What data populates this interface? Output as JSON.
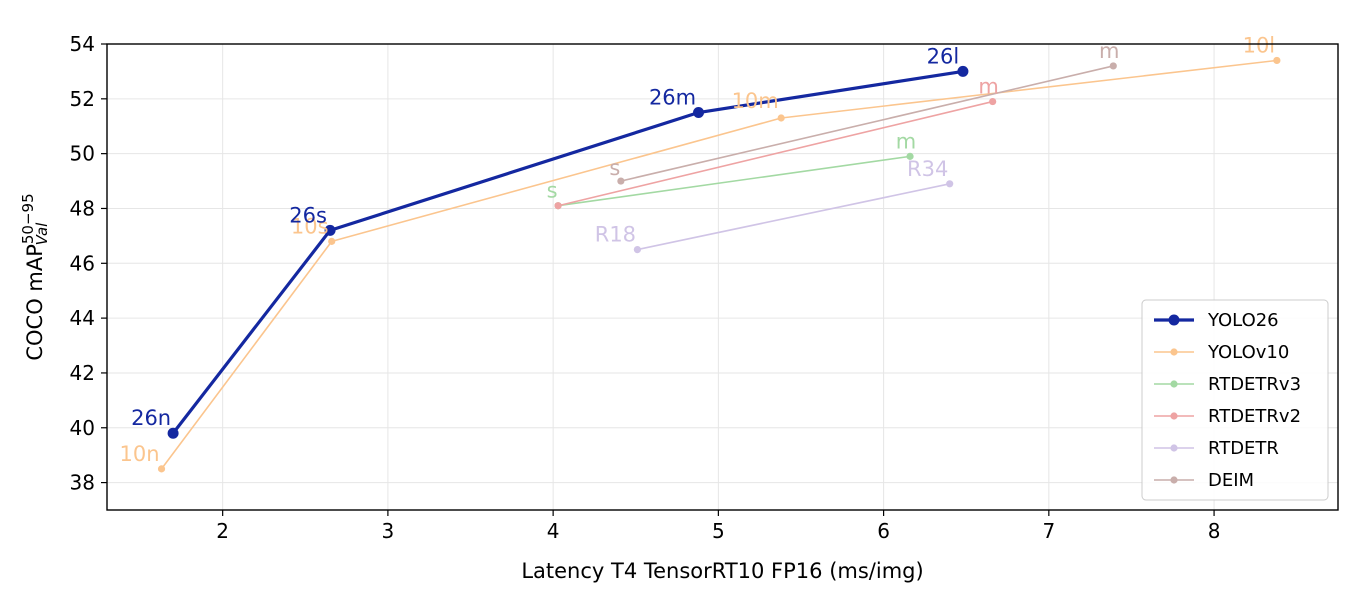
{
  "chart_data": {
    "type": "line",
    "title": "",
    "xlabel": "Latency T4 TensorRT10 FP16 (ms/img)",
    "ylabel": {
      "base": "COCO mAP",
      "superscript": "50−95",
      "subscript": "Val"
    },
    "xlim": [
      1.3,
      8.75
    ],
    "ylim": [
      37,
      54
    ],
    "xticks": [
      2,
      3,
      4,
      5,
      6,
      7,
      8
    ],
    "yticks": [
      38,
      40,
      42,
      44,
      46,
      48,
      50,
      52,
      54
    ],
    "grid": true,
    "legend_position": "bottom-right",
    "series": [
      {
        "name": "YOLO26",
        "color": "#1428a0",
        "emphasis": true,
        "labels": [
          "26n",
          "26s",
          "26m",
          "26l"
        ],
        "x": [
          1.7,
          2.65,
          4.88,
          6.48
        ],
        "y": [
          39.8,
          47.2,
          51.5,
          53.0
        ]
      },
      {
        "name": "YOLOv10",
        "color": "#fbc58e",
        "emphasis": false,
        "labels": [
          "10n",
          "10s",
          "10m",
          "10l"
        ],
        "x": [
          1.63,
          2.66,
          5.38,
          8.38
        ],
        "y": [
          38.5,
          46.8,
          51.3,
          53.4
        ]
      },
      {
        "name": "RTDETRv3",
        "color": "#a3d9a3",
        "emphasis": false,
        "labels": [
          "s",
          "m"
        ],
        "x": [
          4.03,
          6.16
        ],
        "y": [
          48.1,
          49.9
        ]
      },
      {
        "name": "RTDETRv2",
        "color": "#eea3a3",
        "emphasis": false,
        "labels": [
          "",
          "m"
        ],
        "x": [
          4.03,
          6.66
        ],
        "y": [
          48.1,
          51.9
        ]
      },
      {
        "name": "RTDETR",
        "color": "#d0c4e6",
        "emphasis": false,
        "labels": [
          "R18",
          "R34"
        ],
        "x": [
          4.51,
          6.4
        ],
        "y": [
          46.5,
          48.9
        ]
      },
      {
        "name": "DEIM",
        "color": "#c9aeab",
        "emphasis": false,
        "labels": [
          "s",
          "m"
        ],
        "x": [
          4.41,
          7.39
        ],
        "y": [
          49.0,
          53.2
        ]
      }
    ]
  }
}
